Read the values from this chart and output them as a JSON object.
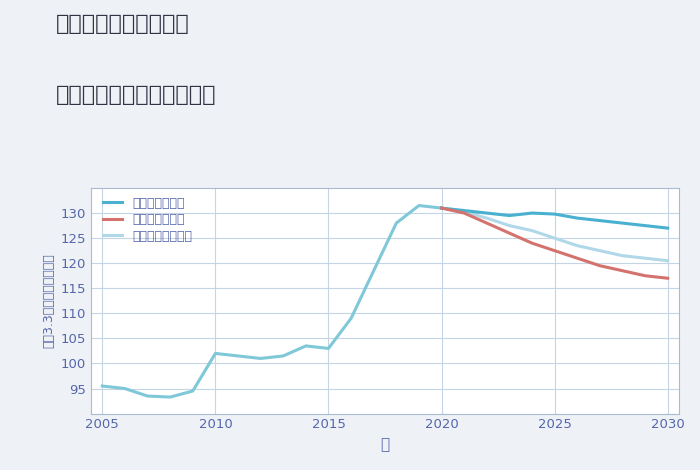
{
  "title_line1": "兵庫県姫路市南車崎の",
  "title_line2": "中古マンションの価格推移",
  "xlabel": "年",
  "ylabel": "平（3.3㎡）単価（万円）",
  "background_color": "#eef2f7",
  "plot_background_color": "#ffffff",
  "grid_color": "#c5d5e5",
  "years_historical": [
    2005,
    2006,
    2007,
    2008,
    2009,
    2010,
    2011,
    2012,
    2013,
    2014,
    2015,
    2016,
    2017,
    2018,
    2019,
    2020
  ],
  "values_historical": [
    95.5,
    95.0,
    93.5,
    93.3,
    94.5,
    102.0,
    101.5,
    101.0,
    101.5,
    103.5,
    103.0,
    109.0,
    118.5,
    128.0,
    131.5,
    131.0
  ],
  "years_good": [
    2020,
    2021,
    2022,
    2023,
    2024,
    2025,
    2026,
    2027,
    2028,
    2029,
    2030
  ],
  "values_good": [
    131.0,
    130.5,
    130.0,
    129.5,
    130.0,
    129.8,
    129.0,
    128.5,
    128.0,
    127.5,
    127.0
  ],
  "years_bad": [
    2020,
    2021,
    2022,
    2023,
    2024,
    2025,
    2026,
    2027,
    2028,
    2029,
    2030
  ],
  "values_bad": [
    131.0,
    130.0,
    128.0,
    126.0,
    124.0,
    122.5,
    121.0,
    119.5,
    118.5,
    117.5,
    117.0
  ],
  "years_normal": [
    2020,
    2021,
    2022,
    2023,
    2024,
    2025,
    2026,
    2027,
    2028,
    2029,
    2030
  ],
  "values_normal": [
    131.0,
    130.2,
    129.0,
    127.5,
    126.5,
    125.0,
    123.5,
    122.5,
    121.5,
    121.0,
    120.5
  ],
  "color_historical": "#7ec8d8",
  "color_good": "#4ab0d0",
  "color_bad": "#d4726e",
  "color_normal": "#b0d8e8",
  "legend_good": "グッドシナリオ",
  "legend_bad": "バッドシナリオ",
  "legend_normal": "ノーマルシナリオ",
  "ylim": [
    90,
    135
  ],
  "yticks": [
    95,
    100,
    105,
    110,
    115,
    120,
    125,
    130
  ],
  "xticks": [
    2005,
    2010,
    2015,
    2020,
    2025,
    2030
  ],
  "line_width": 2.2,
  "title_color": "#333344",
  "axis_color": "#5566aa",
  "tick_color": "#5566aa",
  "legend_color": "#5566aa"
}
